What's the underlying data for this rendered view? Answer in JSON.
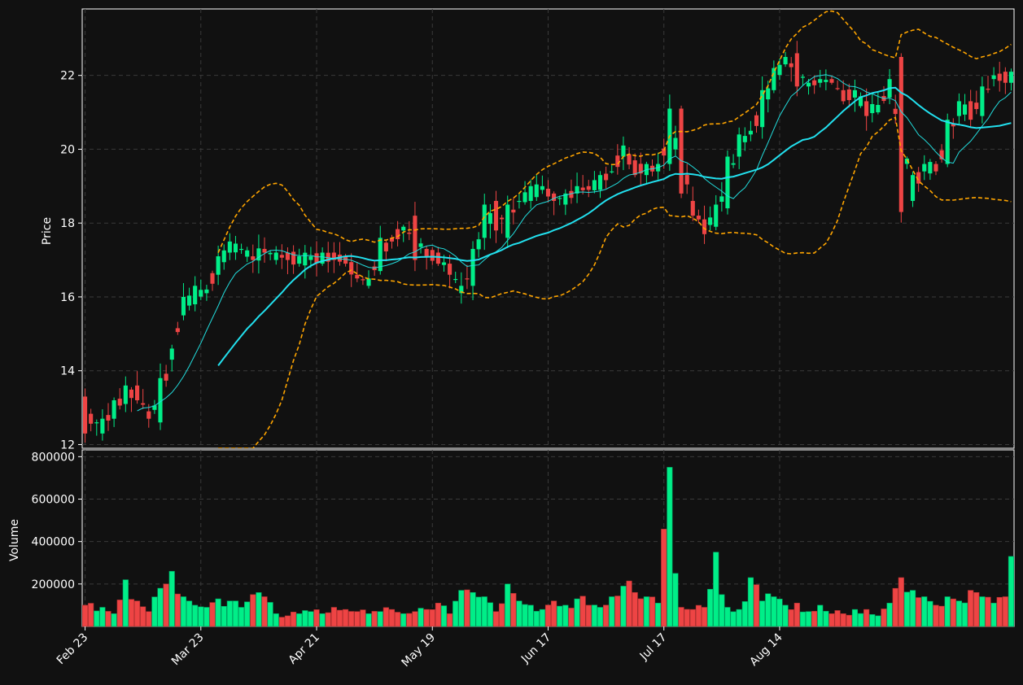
{
  "chart_data": {
    "type": "candlestick",
    "xlabel": "",
    "ylabel_price": "Price",
    "ylabel_volume": "Volume",
    "x_tick_labels": [
      "Feb 23",
      "Mar 23",
      "Apr 21",
      "May 19",
      "Jun 17",
      "Jul 17",
      "Aug 14"
    ],
    "x_tick_index": [
      0,
      20,
      40,
      60,
      80,
      100,
      120
    ],
    "price_ylim": [
      11.9,
      23.8
    ],
    "price_ticks": [
      12,
      14,
      16,
      18,
      20,
      22
    ],
    "volume_ylim": [
      0,
      800000
    ],
    "volume_ticks": [
      200000,
      400000,
      600000,
      800000
    ],
    "grid": true,
    "colors": {
      "background": "#111111",
      "up": "#00ee88",
      "down": "#ee4444",
      "ma_slow": "#22e0ee",
      "ma_fast": "#22dddd",
      "bollinger": "#ffa500",
      "grid": "#3a3a3a",
      "axis": "#ffffff"
    },
    "ohlc_anchors": [
      [
        0,
        13.3,
        12.3
      ],
      [
        3,
        12.3,
        12.7
      ],
      [
        5,
        12.7,
        13.2
      ],
      [
        7,
        13.1,
        13.6
      ],
      [
        9,
        13.6,
        13.2
      ],
      [
        11,
        12.9,
        12.7
      ],
      [
        13,
        12.6,
        13.8
      ],
      [
        15,
        14.3,
        14.6
      ],
      [
        17,
        15.5,
        16.0
      ],
      [
        19,
        15.8,
        16.3
      ],
      [
        21,
        16.1,
        16.2
      ],
      [
        23,
        16.6,
        17.1
      ],
      [
        25,
        17.2,
        17.5
      ],
      [
        27,
        17.3,
        17.3
      ],
      [
        29,
        17.1,
        17.0
      ],
      [
        31,
        17.3,
        17.2
      ],
      [
        33,
        17.0,
        17.2
      ],
      [
        35,
        17.2,
        17.0
      ],
      [
        37,
        16.9,
        17.1
      ],
      [
        39,
        17.0,
        17.1
      ],
      [
        41,
        16.9,
        17.2
      ],
      [
        43,
        17.2,
        17.0
      ],
      [
        45,
        17.1,
        16.9
      ],
      [
        47,
        16.6,
        16.5
      ],
      [
        49,
        16.3,
        16.5
      ],
      [
        51,
        16.7,
        17.6
      ],
      [
        53,
        17.6,
        17.5
      ],
      [
        55,
        17.8,
        17.9
      ],
      [
        57,
        18.2,
        17.0
      ],
      [
        59,
        17.3,
        17.1
      ],
      [
        61,
        17.2,
        16.9
      ],
      [
        63,
        16.9,
        16.6
      ],
      [
        65,
        16.1,
        16.3
      ],
      [
        67,
        16.3,
        17.3
      ],
      [
        69,
        17.6,
        18.5
      ],
      [
        71,
        18.6,
        17.8
      ],
      [
        73,
        17.6,
        18.5
      ],
      [
        75,
        18.6,
        18.6
      ],
      [
        77,
        18.6,
        19.0
      ],
      [
        79,
        18.9,
        19.0
      ],
      [
        81,
        18.8,
        18.6
      ],
      [
        83,
        18.5,
        18.8
      ],
      [
        85,
        18.8,
        19.0
      ],
      [
        87,
        19.0,
        18.9
      ],
      [
        89,
        18.9,
        19.3
      ],
      [
        91,
        19.4,
        19.4
      ],
      [
        93,
        19.8,
        20.1
      ],
      [
        95,
        19.7,
        19.3
      ],
      [
        97,
        19.3,
        19.6
      ],
      [
        99,
        19.4,
        19.6
      ],
      [
        101,
        19.6,
        21.1
      ],
      [
        103,
        21.1,
        18.8
      ],
      [
        105,
        18.6,
        18.2
      ],
      [
        107,
        18.1,
        17.7
      ],
      [
        109,
        17.9,
        18.5
      ],
      [
        111,
        18.4,
        19.8
      ],
      [
        113,
        19.8,
        20.4
      ],
      [
        115,
        20.4,
        20.5
      ],
      [
        117,
        20.6,
        21.6
      ],
      [
        119,
        21.6,
        22.2
      ],
      [
        121,
        22.3,
        22.5
      ],
      [
        123,
        22.6,
        21.7
      ],
      [
        125,
        21.7,
        21.8
      ],
      [
        127,
        21.8,
        21.9
      ],
      [
        129,
        21.9,
        21.8
      ],
      [
        131,
        21.6,
        21.3
      ],
      [
        133,
        21.4,
        21.6
      ],
      [
        135,
        21.3,
        20.9
      ],
      [
        137,
        21.0,
        21.2
      ],
      [
        139,
        21.4,
        21.9
      ],
      [
        141,
        22.5,
        18.3
      ],
      [
        143,
        18.6,
        19.3
      ],
      [
        145,
        19.4,
        19.6
      ],
      [
        147,
        19.6,
        19.4
      ],
      [
        149,
        19.6,
        20.8
      ],
      [
        151,
        20.9,
        21.3
      ],
      [
        153,
        21.3,
        20.8
      ],
      [
        155,
        20.9,
        21.7
      ],
      [
        157,
        21.9,
        22.0
      ],
      [
        159,
        22.1,
        21.8
      ],
      [
        160,
        21.8,
        22.1
      ]
    ],
    "volume_anchors": [
      [
        0,
        100000
      ],
      [
        3,
        90000
      ],
      [
        5,
        60000
      ],
      [
        7,
        220000
      ],
      [
        9,
        120000
      ],
      [
        11,
        70000
      ],
      [
        13,
        180000
      ],
      [
        15,
        260000
      ],
      [
        17,
        140000
      ],
      [
        19,
        100000
      ],
      [
        21,
        90000
      ],
      [
        23,
        130000
      ],
      [
        25,
        120000
      ],
      [
        27,
        90000
      ],
      [
        29,
        150000
      ],
      [
        31,
        140000
      ],
      [
        33,
        60000
      ],
      [
        35,
        50000
      ],
      [
        37,
        60000
      ],
      [
        39,
        70000
      ],
      [
        41,
        60000
      ],
      [
        43,
        90000
      ],
      [
        45,
        80000
      ],
      [
        47,
        70000
      ],
      [
        49,
        60000
      ],
      [
        51,
        70000
      ],
      [
        53,
        80000
      ],
      [
        55,
        60000
      ],
      [
        57,
        70000
      ],
      [
        59,
        80000
      ],
      [
        61,
        110000
      ],
      [
        63,
        60000
      ],
      [
        65,
        170000
      ],
      [
        67,
        160000
      ],
      [
        69,
        140000
      ],
      [
        71,
        70000
      ],
      [
        73,
        200000
      ],
      [
        75,
        120000
      ],
      [
        77,
        100000
      ],
      [
        79,
        80000
      ],
      [
        81,
        120000
      ],
      [
        83,
        100000
      ],
      [
        85,
        130000
      ],
      [
        87,
        100000
      ],
      [
        89,
        90000
      ],
      [
        91,
        140000
      ],
      [
        93,
        190000
      ],
      [
        95,
        160000
      ],
      [
        97,
        140000
      ],
      [
        99,
        110000
      ],
      [
        101,
        750000
      ],
      [
        102,
        250000
      ],
      [
        103,
        90000
      ],
      [
        105,
        80000
      ],
      [
        107,
        90000
      ],
      [
        109,
        350000
      ],
      [
        110,
        150000
      ],
      [
        111,
        90000
      ],
      [
        113,
        80000
      ],
      [
        115,
        230000
      ],
      [
        117,
        120000
      ],
      [
        119,
        140000
      ],
      [
        121,
        100000
      ],
      [
        123,
        110000
      ],
      [
        125,
        70000
      ],
      [
        127,
        100000
      ],
      [
        129,
        60000
      ],
      [
        131,
        60000
      ],
      [
        133,
        80000
      ],
      [
        135,
        80000
      ],
      [
        137,
        50000
      ],
      [
        139,
        110000
      ],
      [
        141,
        230000
      ],
      [
        143,
        170000
      ],
      [
        145,
        140000
      ],
      [
        147,
        100000
      ],
      [
        149,
        140000
      ],
      [
        151,
        120000
      ],
      [
        153,
        170000
      ],
      [
        155,
        140000
      ],
      [
        157,
        110000
      ],
      [
        159,
        140000
      ],
      [
        160,
        330000
      ]
    ],
    "ma_period_fast": 10,
    "ma_period_slow": 24,
    "bollinger_period": 24,
    "bollinger_k": 2,
    "num_candles": 161
  }
}
